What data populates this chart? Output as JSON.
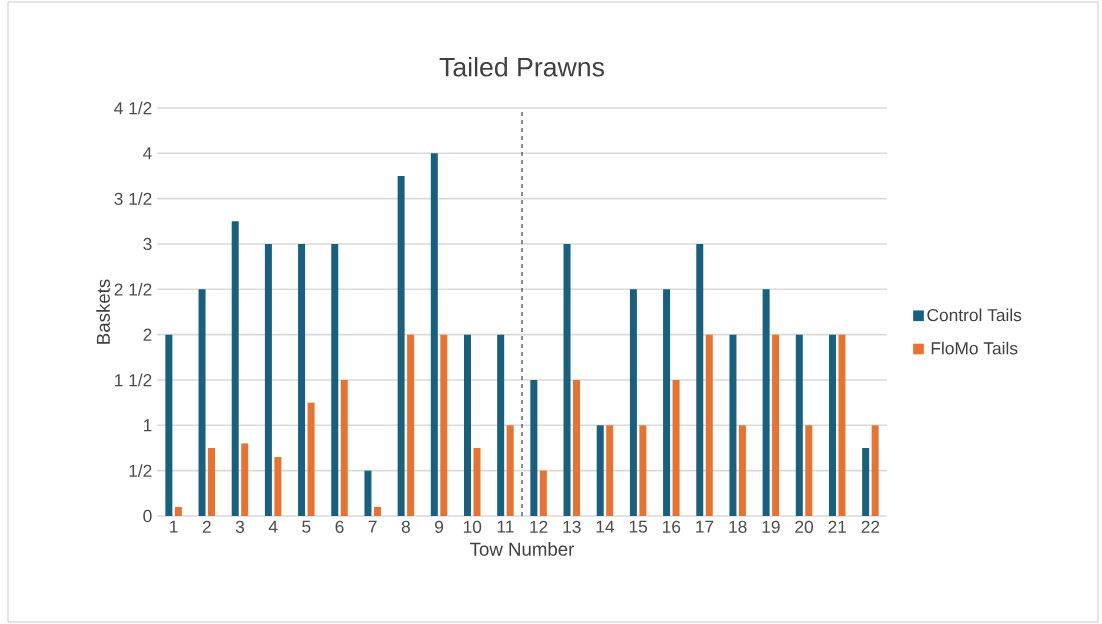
{
  "chart_data": {
    "type": "bar",
    "title": "Tailed Prawns",
    "xlabel": "Tow Number",
    "ylabel": "Baskets",
    "x": [
      1,
      2,
      3,
      4,
      5,
      6,
      7,
      8,
      9,
      10,
      11,
      12,
      13,
      14,
      15,
      16,
      17,
      18,
      19,
      20,
      21,
      22
    ],
    "xlim": [
      0.5,
      22.5
    ],
    "xticks": [
      1,
      2,
      3,
      4,
      5,
      6,
      7,
      8,
      9,
      10,
      11,
      12,
      13,
      14,
      15,
      16,
      17,
      18,
      19,
      20,
      21,
      22
    ],
    "ylim": [
      0,
      4.5
    ],
    "yticks": [
      {
        "value": 0,
        "label": "0"
      },
      {
        "value": 0.5,
        "label": "1/2"
      },
      {
        "value": 1,
        "label": "1"
      },
      {
        "value": 1.5,
        "label": "1 1/2"
      },
      {
        "value": 2,
        "label": "2"
      },
      {
        "value": 2.5,
        "label": "2 1/2"
      },
      {
        "value": 3,
        "label": "3"
      },
      {
        "value": 3.5,
        "label": "3 1/2"
      },
      {
        "value": 4,
        "label": "4"
      },
      {
        "value": 4.5,
        "label": "4 1/2"
      }
    ],
    "grid": "y",
    "legend": "right",
    "ref_lines": [
      {
        "axis": "x",
        "value": 11.5,
        "color": "#404040",
        "line_style": "dashed"
      }
    ],
    "series": [
      {
        "name": "Control Tails",
        "color": "#17607f",
        "values": [
          2,
          2.5,
          3.25,
          3,
          3,
          3,
          0.5,
          3.75,
          4,
          2,
          2,
          1.5,
          3,
          1,
          2.5,
          2.5,
          3,
          2,
          2.5,
          2,
          2,
          0.75
        ]
      },
      {
        "name": "FloMo Tails",
        "color": "#e8722f",
        "values": [
          0.1,
          0.75,
          0.8,
          0.65,
          1.25,
          1.5,
          0.1,
          2,
          2,
          0.75,
          1,
          0.5,
          1.5,
          1,
          1,
          1.5,
          2,
          1,
          2,
          1,
          2,
          1
        ]
      }
    ]
  }
}
